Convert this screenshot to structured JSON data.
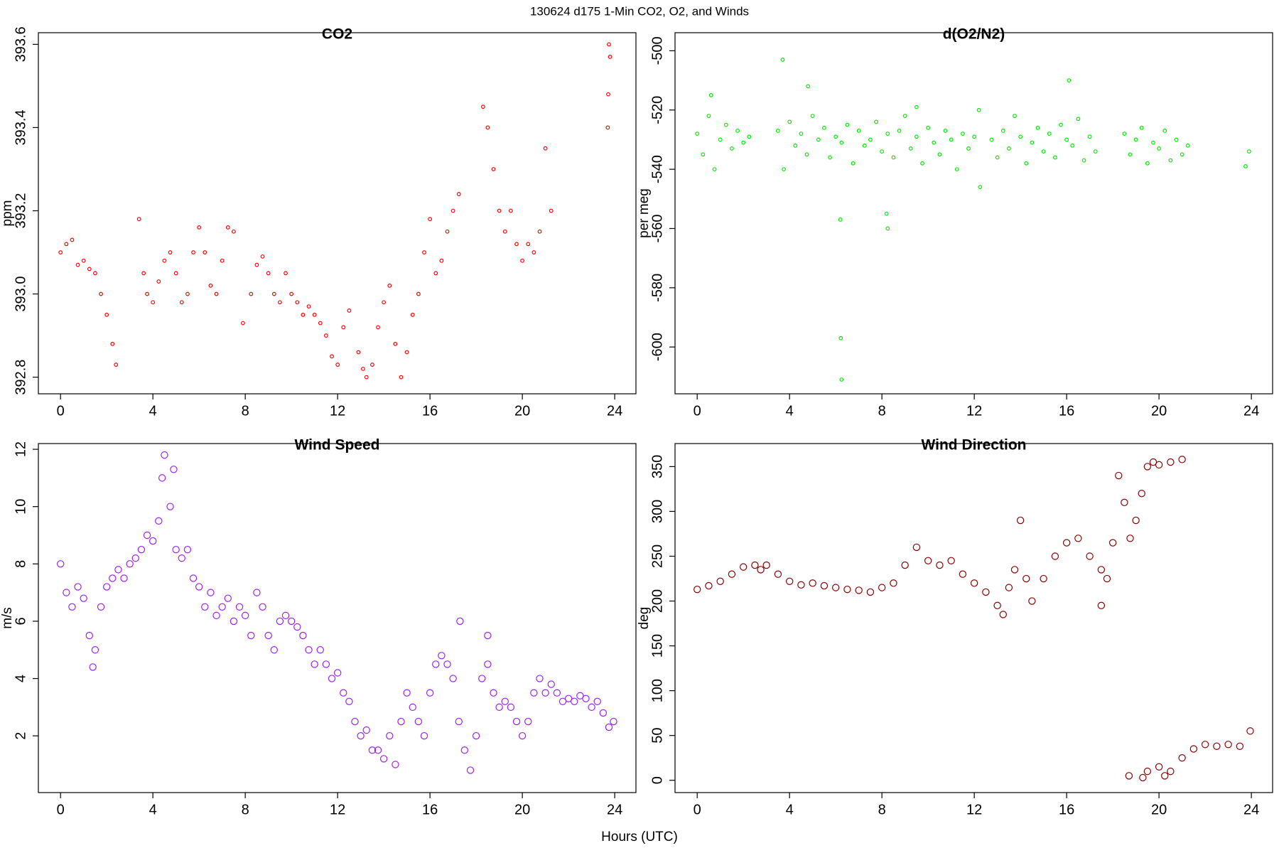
{
  "title": "130624   d175   1-Min CO2, O2, and Winds",
  "xlabel": "Hours (UTC)",
  "chart_data": [
    {
      "type": "scatter",
      "title": "CO2",
      "ylabel": "ppm",
      "color": "#ff0000",
      "marker_size": 2.3,
      "xlim": [
        -0.96,
        24.92
      ],
      "xticks": [
        0,
        4,
        8,
        12,
        16,
        20,
        24
      ],
      "ylim": [
        392.76,
        393.628
      ],
      "yticks": [
        392.8,
        {
          "value": 393,
          "label": "393.0"
        },
        393.2,
        393.4,
        393.6
      ],
      "x": [
        0,
        0.25,
        0.5,
        0.75,
        1,
        1.25,
        1.5,
        1.75,
        2,
        2.25,
        2.4,
        3.4,
        3.6,
        3.75,
        4,
        4.25,
        4.5,
        4.75,
        5,
        5.25,
        5.5,
        5.75,
        6,
        6.25,
        6.5,
        6.75,
        7,
        7.25,
        7.5,
        7.9,
        8.25,
        8.5,
        8.75,
        9,
        9.25,
        9.5,
        9.75,
        10,
        10.25,
        10.5,
        10.75,
        11,
        11.25,
        11.5,
        11.75,
        12,
        12.25,
        12.5,
        12.9,
        13.1,
        13.25,
        13.5,
        13.75,
        14,
        14.25,
        14.5,
        14.75,
        15,
        15.25,
        15.5,
        15.75,
        16,
        16.25,
        16.5,
        16.75,
        17,
        17.25,
        18.3,
        18.5,
        18.75,
        19,
        19.25,
        19.5,
        19.75,
        20,
        20.25,
        20.5,
        20.75,
        21,
        21.25,
        23.7,
        23.72,
        23.75,
        23.8
      ],
      "values": [
        393.1,
        393.12,
        393.13,
        393.07,
        393.08,
        393.06,
        393.05,
        393.0,
        392.95,
        392.88,
        392.83,
        393.18,
        393.05,
        393.0,
        392.98,
        393.03,
        393.08,
        393.1,
        393.05,
        392.98,
        393.0,
        393.1,
        393.16,
        393.1,
        393.02,
        393.0,
        393.08,
        393.16,
        393.15,
        392.93,
        393.0,
        393.07,
        393.09,
        393.05,
        393.0,
        392.98,
        393.05,
        393.0,
        392.98,
        392.95,
        392.97,
        392.95,
        392.93,
        392.9,
        392.85,
        392.83,
        392.92,
        392.96,
        392.86,
        392.82,
        392.8,
        392.83,
        392.92,
        392.98,
        393.02,
        392.88,
        392.8,
        392.86,
        392.95,
        393.0,
        393.1,
        393.18,
        393.05,
        393.08,
        393.15,
        393.2,
        393.24,
        393.45,
        393.4,
        393.3,
        393.2,
        393.15,
        393.2,
        393.12,
        393.08,
        393.12,
        393.1,
        393.15,
        393.35,
        393.2,
        393.4,
        393.48,
        393.6,
        393.57
      ]
    },
    {
      "type": "scatter",
      "title": "d(O2/N2)",
      "ylabel": "per meg",
      "color": "#00ee00",
      "marker_size": 2.3,
      "xlim": [
        -0.96,
        24.92
      ],
      "xticks": [
        0,
        4,
        8,
        12,
        16,
        20,
        24
      ],
      "ylim": [
        -615.8,
        -493.9
      ],
      "yticks": [
        -600,
        -580,
        -560,
        -540,
        -520,
        -500
      ],
      "x": [
        0,
        0.25,
        0.5,
        0.75,
        1,
        1.25,
        1.5,
        1.75,
        2,
        2.25,
        3.5,
        3.75,
        4,
        4.25,
        4.5,
        4.75,
        5,
        5.25,
        5.5,
        5.75,
        6,
        6.25,
        6.5,
        6.75,
        7,
        7.25,
        7.5,
        7.75,
        8,
        8.25,
        8.5,
        8.75,
        9,
        9.25,
        9.5,
        9.75,
        10,
        10.25,
        10.5,
        10.75,
        11,
        11.25,
        11.5,
        11.75,
        12,
        12.25,
        12.75,
        13,
        13.25,
        13.5,
        13.75,
        14,
        14.25,
        14.5,
        14.75,
        15,
        15.25,
        15.5,
        15.75,
        16,
        16.25,
        16.5,
        16.75,
        17,
        17.25,
        18.5,
        18.75,
        19,
        19.25,
        19.5,
        19.75,
        20,
        20.25,
        20.5,
        20.75,
        21,
        21.25,
        23.75,
        23.9,
        6.2,
        6.22,
        6.25,
        8.2,
        8.25,
        3.7,
        16.1,
        0.6,
        4.8,
        9.5,
        12.2
      ],
      "values": [
        -528,
        -535,
        -522,
        -540,
        -530,
        -525,
        -533,
        -527,
        -531,
        -529,
        -527,
        -540,
        -524,
        -532,
        -528,
        -535,
        -522,
        -530,
        -526,
        -536,
        -529,
        -531,
        -525,
        -538,
        -527,
        -532,
        -530,
        -524,
        -534,
        -528,
        -536,
        -527,
        -522,
        -533,
        -529,
        -538,
        -526,
        -531,
        -535,
        -527,
        -530,
        -540,
        -528,
        -533,
        -529,
        -546,
        -530,
        -536,
        -527,
        -533,
        -522,
        -529,
        -538,
        -531,
        -526,
        -534,
        -528,
        -536,
        -525,
        -530,
        -532,
        -523,
        -537,
        -529,
        -534,
        -528,
        -535,
        -530,
        -526,
        -538,
        -531,
        -533,
        -527,
        -537,
        -530,
        -535,
        -532,
        -539,
        -534,
        -557,
        -597,
        -611,
        -555,
        -560,
        -503,
        -510,
        -515,
        -512,
        -519,
        -520
      ]
    },
    {
      "type": "scatter",
      "title": "Wind Speed",
      "ylabel": "m/s",
      "color": "#a020f0",
      "marker_size": 4.6,
      "xlim": [
        -0.96,
        24.92
      ],
      "xticks": [
        0,
        4,
        8,
        12,
        16,
        20,
        24
      ],
      "ylim": [
        0.02,
        12.2
      ],
      "yticks": [
        2,
        4,
        6,
        8,
        10,
        12
      ],
      "x": [
        0,
        0.25,
        0.5,
        0.75,
        1,
        1.25,
        1.5,
        1.75,
        2,
        2.25,
        2.5,
        2.75,
        3,
        3.25,
        3.5,
        3.75,
        4,
        4.25,
        4.5,
        4.75,
        5,
        5.25,
        5.5,
        5.75,
        6,
        6.25,
        6.5,
        6.75,
        7,
        7.25,
        7.5,
        7.75,
        8,
        8.25,
        8.5,
        8.75,
        9,
        9.25,
        9.5,
        9.75,
        10,
        10.25,
        10.5,
        10.75,
        11,
        11.25,
        11.5,
        11.75,
        12,
        12.25,
        12.5,
        12.75,
        13,
        13.25,
        13.5,
        13.75,
        14,
        14.25,
        14.5,
        14.75,
        15,
        15.25,
        15.5,
        15.75,
        16,
        16.25,
        16.5,
        16.75,
        17,
        17.25,
        17.5,
        17.75,
        18,
        18.25,
        18.5,
        18.75,
        19,
        19.25,
        19.5,
        19.75,
        20,
        20.25,
        20.5,
        20.75,
        21,
        21.25,
        21.5,
        21.75,
        22,
        22.25,
        22.5,
        22.75,
        23,
        23.25,
        23.5,
        23.75,
        23.95,
        4.4,
        4.9,
        1.4,
        17.3,
        18.5
      ],
      "values": [
        8,
        7,
        6.5,
        7.2,
        6.8,
        5.5,
        5,
        6.5,
        7.2,
        7.5,
        7.8,
        7.5,
        8,
        8.2,
        8.5,
        9,
        8.8,
        9.5,
        11.8,
        10,
        8.5,
        8.2,
        8.5,
        7.5,
        7.2,
        6.5,
        7,
        6.2,
        6.5,
        6.8,
        6,
        6.5,
        6.2,
        5.5,
        7,
        6.5,
        5.5,
        5,
        6,
        6.2,
        6,
        5.8,
        5.5,
        5,
        4.5,
        5,
        4.5,
        4,
        4.2,
        3.5,
        3.2,
        2.5,
        2,
        2.2,
        1.5,
        1.5,
        1.2,
        2,
        1,
        2.5,
        3.5,
        3,
        2.5,
        2,
        3.5,
        4.5,
        4.8,
        4.5,
        4,
        2.5,
        1.5,
        0.8,
        2,
        4,
        4.5,
        3.5,
        3,
        3.2,
        3,
        2.5,
        2,
        2.5,
        3.5,
        4,
        3.5,
        3.8,
        3.5,
        3.2,
        3.3,
        3.2,
        3.4,
        3.3,
        3,
        3.2,
        2.8,
        2.3,
        2.5,
        11,
        11.3,
        4.4,
        6,
        5.5
      ]
    },
    {
      "type": "scatter",
      "title": "Wind Direction",
      "ylabel": "deg",
      "color": "#8b0000",
      "marker_size": 4.6,
      "xlim": [
        -0.96,
        24.92
      ],
      "xticks": [
        0,
        4,
        8,
        12,
        16,
        20,
        24
      ],
      "ylim": [
        -13.7,
        375.7
      ],
      "yticks": [
        0,
        50,
        100,
        150,
        200,
        250,
        300,
        350
      ],
      "x": [
        0,
        0.5,
        1,
        1.5,
        2,
        2.5,
        2.75,
        3,
        3.5,
        4,
        4.5,
        5,
        5.5,
        6,
        6.5,
        7,
        7.5,
        8,
        8.5,
        9,
        9.5,
        10,
        10.5,
        11,
        11.5,
        12,
        12.5,
        13,
        13.25,
        13.5,
        13.75,
        14,
        14.25,
        14.5,
        15,
        15.5,
        16,
        16.5,
        17,
        17.5,
        17.75,
        18,
        18.25,
        18.5,
        18.75,
        19,
        19.25,
        19.5,
        19.75,
        20,
        20.5,
        21,
        18.7,
        19.3,
        19.5,
        20,
        20.25,
        20.5,
        21,
        21.5,
        22,
        22.5,
        23,
        23.5,
        23.95,
        17.5
      ],
      "values": [
        213,
        217,
        222,
        230,
        238,
        240,
        235,
        240,
        230,
        222,
        218,
        220,
        217,
        215,
        213,
        212,
        210,
        215,
        220,
        240,
        260,
        245,
        240,
        245,
        230,
        220,
        210,
        195,
        185,
        215,
        235,
        290,
        225,
        200,
        225,
        250,
        265,
        270,
        250,
        235,
        225,
        265,
        340,
        310,
        270,
        290,
        320,
        350,
        355,
        352,
        355,
        358,
        5,
        3,
        10,
        15,
        5,
        10,
        25,
        35,
        40,
        38,
        40,
        38,
        55,
        195
      ]
    }
  ]
}
